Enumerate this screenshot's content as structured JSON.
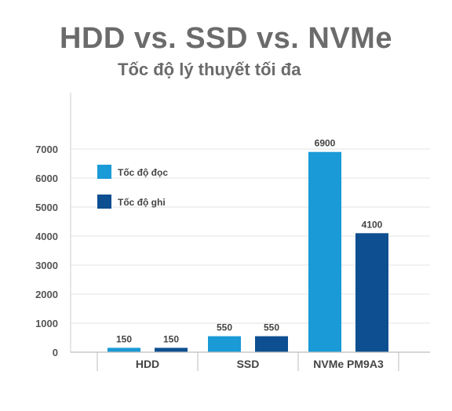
{
  "title": "HDD vs. SSD vs. NVMe",
  "subtitle": "Tốc độ lý thuyết tối đa",
  "chart_data": {
    "type": "bar",
    "title": "HDD vs. SSD vs. NVMe",
    "subtitle": "Tốc độ lý thuyết tối đa",
    "categories": [
      "HDD",
      "SSD",
      "NVMe PM9A3"
    ],
    "series": [
      {
        "name": "Tốc độ đọc",
        "color": "#1a9ad6",
        "values": [
          150,
          550,
          6900
        ]
      },
      {
        "name": "Tốc độ ghi",
        "color": "#0d4f91",
        "values": [
          150,
          550,
          4100
        ]
      }
    ],
    "yticks": [
      0,
      1000,
      2000,
      3000,
      4000,
      5000,
      6000,
      7000
    ],
    "ylim": [
      0,
      7000
    ],
    "grid": true,
    "legend": "top-left"
  }
}
